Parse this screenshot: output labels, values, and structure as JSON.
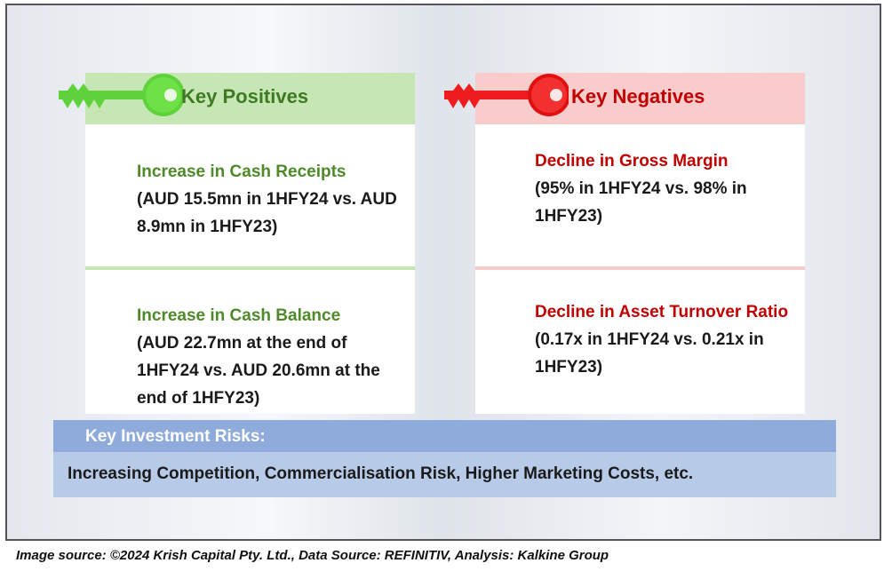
{
  "positives": {
    "title": "Key Positives",
    "items": [
      {
        "headline": "Increase in Cash Receipts",
        "detail": "(AUD 15.5mn in 1HFY24 vs. AUD 8.9mn in 1HFY23)"
      },
      {
        "headline": "Increase in Cash Balance",
        "detail": "(AUD 22.7mn at the end of 1HFY24 vs. AUD 20.6mn at the end of 1HFY23)"
      }
    ],
    "colors": {
      "header_bg": "#c6e6b4",
      "accent": "#4e8a2a",
      "key": "#5fd13a"
    }
  },
  "negatives": {
    "title": "Key Negatives",
    "items": [
      {
        "headline": "Decline in Gross Margin",
        "detail": "(95% in 1HFY24 vs. 98% in 1HFY23)"
      },
      {
        "headline": "Decline in Asset Turnover Ratio",
        "detail": "(0.17x in 1HFY24 vs. 0.21x in 1HFY23)"
      }
    ],
    "colors": {
      "header_bg": "#f9cccc",
      "accent": "#c00000",
      "key": "#ee1c1c"
    }
  },
  "risks": {
    "title": "Key Investment Risks:",
    "body": "Increasing Competition, Commercialisation Risk, Higher Marketing Costs, etc.",
    "colors": {
      "header_bg": "#8fabdc",
      "body_bg": "#b7cbe9"
    }
  },
  "footer": {
    "source": "Image source: ©2024 Krish Capital Pty. Ltd., Data Source: REFINITIV, Analysis: Kalkine Group"
  }
}
